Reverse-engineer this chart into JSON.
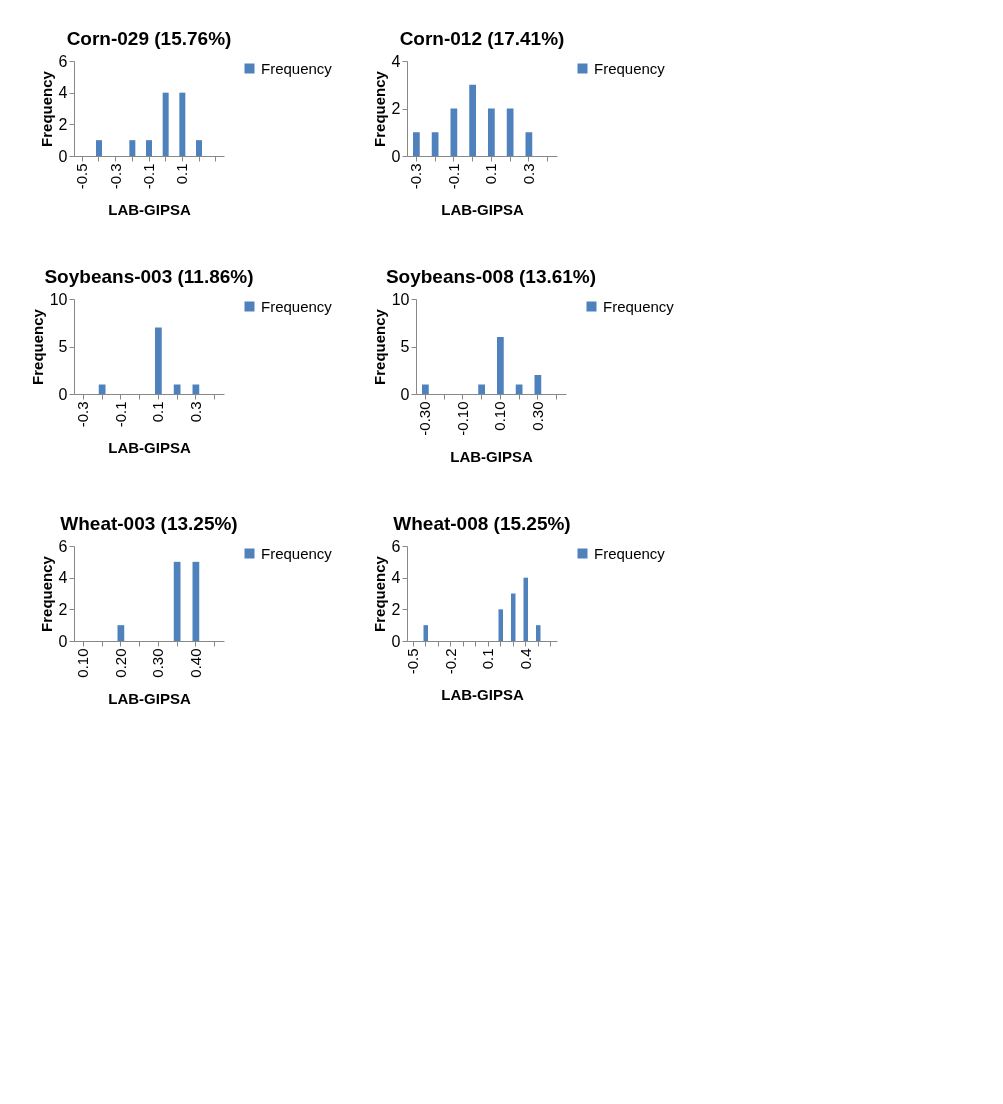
{
  "chart_data": [
    {
      "type": "bar",
      "title": "Corn-029 (15.76%)",
      "xlabel": "LAB-GIPSA",
      "ylabel": "Frequency",
      "categories": [
        "-0.5",
        null,
        "-0.3",
        null,
        "-0.1",
        null,
        "0.1",
        null,
        null
      ],
      "series": [
        {
          "name": "Frequency",
          "color": "#4f81bd",
          "values": [
            0,
            1,
            0,
            1,
            1,
            4,
            4,
            1,
            0
          ]
        }
      ],
      "ylim": [
        0,
        6
      ],
      "yticks": [
        0,
        2,
        4,
        6
      ],
      "grid": false,
      "legend": "right"
    },
    {
      "type": "bar",
      "title": "Corn-012 (17.41%)",
      "xlabel": "LAB-GIPSA",
      "ylabel": "Frequency",
      "categories": [
        "-0.3",
        null,
        "-0.1",
        null,
        "0.1",
        null,
        "0.3",
        null
      ],
      "series": [
        {
          "name": "Frequency",
          "color": "#4f81bd",
          "values": [
            1,
            1,
            2,
            3,
            2,
            2,
            1,
            0
          ]
        }
      ],
      "ylim": [
        0,
        4
      ],
      "yticks": [
        0,
        2,
        4
      ],
      "grid": false,
      "legend": "right"
    },
    {
      "type": "bar",
      "title": "Soybeans-003  (11.86%)",
      "xlabel": "LAB-GIPSA",
      "ylabel": "Frequency",
      "categories": [
        "-0.3",
        null,
        "-0.1",
        null,
        "0.1",
        null,
        "0.3",
        null
      ],
      "series": [
        {
          "name": "Frequency",
          "color": "#4f81bd",
          "values": [
            0,
            1,
            0,
            0,
            7,
            1,
            1,
            0
          ]
        }
      ],
      "ylim": [
        0,
        10
      ],
      "yticks": [
        0,
        5,
        10
      ],
      "grid": false,
      "legend": "right"
    },
    {
      "type": "bar",
      "title": "Soybeans-008 (13.61%)",
      "xlabel": "LAB-GIPSA",
      "ylabel": "Frequency",
      "categories": [
        "-0.30",
        null,
        "-0.10",
        null,
        "0.10",
        null,
        "0.30",
        null
      ],
      "series": [
        {
          "name": "Frequency",
          "color": "#4f81bd",
          "values": [
            1,
            0,
            0,
            1,
            6,
            1,
            2,
            0
          ]
        }
      ],
      "ylim": [
        0,
        10
      ],
      "yticks": [
        0,
        5,
        10
      ],
      "grid": false,
      "legend": "right"
    },
    {
      "type": "bar",
      "title": "Wheat-003 (13.25%)",
      "xlabel": "LAB-GIPSA",
      "ylabel": "Frequency",
      "categories": [
        "0.10",
        null,
        "0.20",
        null,
        "0.30",
        null,
        "0.40",
        null
      ],
      "series": [
        {
          "name": "Frequency",
          "color": "#4f81bd",
          "values": [
            0,
            0,
            1,
            0,
            0,
            5,
            5,
            0
          ]
        }
      ],
      "ylim": [
        0,
        6
      ],
      "yticks": [
        0,
        2,
        4,
        6
      ],
      "grid": false,
      "legend": "right"
    },
    {
      "type": "bar",
      "title": "Wheat-008 (15.25%)",
      "xlabel": "LAB-GIPSA",
      "ylabel": "Frequency",
      "categories": [
        "-0.5",
        null,
        null,
        "-0.2",
        null,
        null,
        "0.1",
        null,
        null,
        "0.4",
        null,
        null
      ],
      "series": [
        {
          "name": "Frequency",
          "color": "#4f81bd",
          "values": [
            0,
            1,
            0,
            0,
            0,
            0,
            0,
            2,
            3,
            4,
            1,
            0
          ]
        }
      ],
      "ylim": [
        0,
        6
      ],
      "yticks": [
        0,
        2,
        4,
        6
      ],
      "grid": false,
      "legend": "right"
    }
  ]
}
